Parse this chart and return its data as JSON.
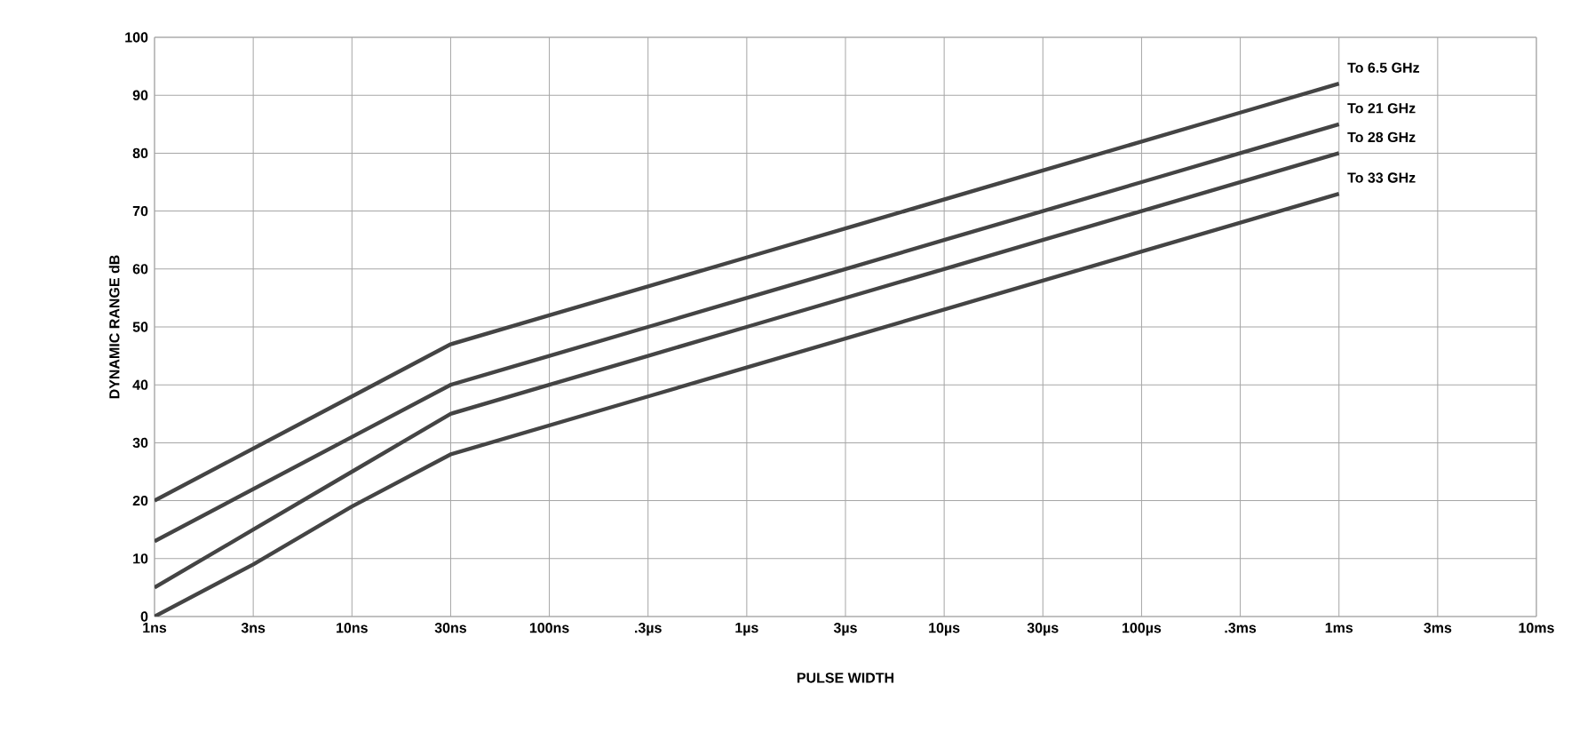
{
  "chart_data": {
    "type": "line",
    "xlabel": "PULSE WIDTH",
    "ylabel": "DYNAMIC RANGE dB",
    "grid": true,
    "categories": [
      "1ns",
      "3ns",
      "10ns",
      "30ns",
      "100ns",
      ".3µs",
      "1µs",
      "3µs",
      "10µs",
      "30µs",
      "100µs",
      ".3ms",
      "1ms",
      "3ms",
      "10ms"
    ],
    "ylim": [
      0,
      100
    ],
    "yticks": [
      0,
      10,
      20,
      30,
      40,
      50,
      60,
      70,
      80,
      90,
      100
    ],
    "series": [
      {
        "name": "To 6.5 GHz",
        "color": "#444444",
        "values": [
          20,
          29,
          38,
          47,
          52,
          57,
          62,
          67,
          72,
          77,
          82,
          87,
          92,
          null,
          null
        ]
      },
      {
        "name": "To 21 GHz",
        "color": "#444444",
        "values": [
          13,
          22,
          31,
          40,
          45,
          50,
          55,
          60,
          65,
          70,
          75,
          80,
          85,
          null,
          null
        ]
      },
      {
        "name": "To 28 GHz",
        "color": "#444444",
        "values": [
          5,
          15,
          25,
          35,
          40,
          45,
          50,
          55,
          60,
          65,
          70,
          75,
          80,
          null,
          null
        ]
      },
      {
        "name": "To 33 GHz",
        "color": "#444444",
        "values": [
          0,
          9,
          19,
          28,
          33,
          38,
          43,
          48,
          53,
          58,
          63,
          68,
          73,
          null,
          null
        ]
      }
    ]
  }
}
